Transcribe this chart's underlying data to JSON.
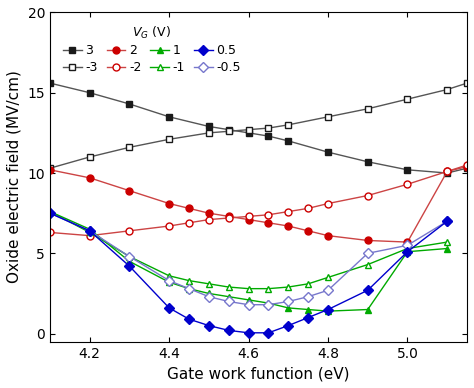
{
  "xlabel": "Gate work function (eV)",
  "ylabel": "Oxide electric field (MV/cm)",
  "xlim": [
    4.1,
    5.15
  ],
  "ylim": [
    -0.5,
    20
  ],
  "yticks": [
    0,
    5,
    10,
    15,
    20
  ],
  "xticks": [
    4.2,
    4.4,
    4.6,
    4.8,
    5.0
  ],
  "series": {
    "3": {
      "x": [
        4.1,
        4.2,
        4.3,
        4.4,
        4.5,
        4.55,
        4.6,
        4.65,
        4.7,
        4.8,
        4.9,
        5.0,
        5.1,
        5.15
      ],
      "y": [
        15.6,
        15.0,
        14.3,
        13.5,
        12.9,
        12.7,
        12.5,
        12.3,
        12.0,
        11.3,
        10.7,
        10.2,
        10.0,
        10.3
      ],
      "color": "#1a1a1a",
      "marker": "s",
      "filled": true
    },
    "-3": {
      "x": [
        4.1,
        4.2,
        4.3,
        4.4,
        4.5,
        4.55,
        4.6,
        4.65,
        4.7,
        4.8,
        4.9,
        5.0,
        5.1,
        5.15
      ],
      "y": [
        10.3,
        11.0,
        11.6,
        12.1,
        12.5,
        12.6,
        12.7,
        12.8,
        13.0,
        13.5,
        14.0,
        14.6,
        15.2,
        15.6
      ],
      "color": "#1a1a1a",
      "marker": "s",
      "filled": false
    },
    "2": {
      "x": [
        4.1,
        4.2,
        4.3,
        4.4,
        4.45,
        4.5,
        4.55,
        4.6,
        4.65,
        4.7,
        4.75,
        4.8,
        4.9,
        5.0,
        5.1,
        5.15
      ],
      "y": [
        10.2,
        9.7,
        8.9,
        8.1,
        7.8,
        7.5,
        7.3,
        7.1,
        6.9,
        6.7,
        6.4,
        6.1,
        5.8,
        5.7,
        10.1,
        10.4
      ],
      "color": "#cc0000",
      "marker": "o",
      "filled": true
    },
    "-2": {
      "x": [
        4.1,
        4.2,
        4.3,
        4.4,
        4.45,
        4.5,
        4.55,
        4.6,
        4.65,
        4.7,
        4.75,
        4.8,
        4.9,
        5.0,
        5.1,
        5.15
      ],
      "y": [
        6.3,
        6.1,
        6.4,
        6.7,
        6.9,
        7.1,
        7.2,
        7.3,
        7.4,
        7.6,
        7.8,
        8.1,
        8.6,
        9.3,
        10.1,
        10.5
      ],
      "color": "#cc0000",
      "marker": "o",
      "filled": false
    },
    "1": {
      "x": [
        4.1,
        4.2,
        4.3,
        4.4,
        4.45,
        4.5,
        4.55,
        4.6,
        4.65,
        4.7,
        4.75,
        4.8,
        4.9,
        5.0,
        5.1
      ],
      "y": [
        7.6,
        6.5,
        4.5,
        3.2,
        2.8,
        2.5,
        2.3,
        2.1,
        1.9,
        1.6,
        1.5,
        1.4,
        1.5,
        5.1,
        5.3
      ],
      "color": "#00aa00",
      "marker": "^",
      "filled": true
    },
    "-1": {
      "x": [
        4.1,
        4.2,
        4.3,
        4.4,
        4.45,
        4.5,
        4.55,
        4.6,
        4.65,
        4.7,
        4.75,
        4.8,
        4.9,
        5.0,
        5.1
      ],
      "y": [
        7.6,
        6.3,
        4.8,
        3.6,
        3.3,
        3.1,
        2.9,
        2.8,
        2.8,
        2.9,
        3.1,
        3.5,
        4.3,
        5.3,
        5.7
      ],
      "color": "#00aa00",
      "marker": "^",
      "filled": false
    },
    "0.5": {
      "x": [
        4.1,
        4.2,
        4.3,
        4.4,
        4.45,
        4.5,
        4.55,
        4.6,
        4.65,
        4.7,
        4.75,
        4.8,
        4.9,
        5.0,
        5.1
      ],
      "y": [
        7.5,
        6.4,
        4.2,
        1.6,
        0.9,
        0.5,
        0.2,
        0.05,
        0.05,
        0.5,
        1.0,
        1.5,
        2.7,
        5.1,
        7.0
      ],
      "color": "#0000cc",
      "marker": "D",
      "filled": true
    },
    "-0.5": {
      "x": [
        4.1,
        4.2,
        4.3,
        4.4,
        4.45,
        4.5,
        4.55,
        4.6,
        4.65,
        4.7,
        4.75,
        4.8,
        4.9,
        5.0,
        5.1
      ],
      "y": [
        7.5,
        6.4,
        4.8,
        3.3,
        2.8,
        2.3,
        2.0,
        1.8,
        1.8,
        2.0,
        2.3,
        2.7,
        5.0,
        5.5,
        7.0
      ],
      "color": "#7777cc",
      "marker": "D",
      "filled": false
    }
  },
  "marker_map": {
    "3": {
      "marker": "s",
      "filled": true,
      "color": "#1a1a1a",
      "lcolor": "#555555"
    },
    "-3": {
      "marker": "s",
      "filled": false,
      "color": "#1a1a1a",
      "lcolor": "#555555"
    },
    "2": {
      "marker": "o",
      "filled": true,
      "color": "#cc0000",
      "lcolor": "#cc4444"
    },
    "-2": {
      "marker": "o",
      "filled": false,
      "color": "#cc0000",
      "lcolor": "#cc4444"
    },
    "1": {
      "marker": "^",
      "filled": true,
      "color": "#00aa00",
      "lcolor": "#00aa00"
    },
    "-1": {
      "marker": "^",
      "filled": false,
      "color": "#00aa00",
      "lcolor": "#00aa00"
    },
    "0.5": {
      "marker": "D",
      "filled": true,
      "color": "#0000cc",
      "lcolor": "#0000cc"
    },
    "-0.5": {
      "marker": "D",
      "filled": false,
      "color": "#7777cc",
      "lcolor": "#7777cc"
    }
  },
  "plot_order": [
    "3",
    "-3",
    "2",
    "-2",
    "-1",
    "1",
    "-0.5",
    "0.5"
  ],
  "legend_row1": [
    "3",
    "-3",
    "2",
    "-2"
  ],
  "legend_row2": [
    "1",
    "-1",
    "0.5",
    "-0.5"
  ],
  "legend_title": "$V_G$ (V)"
}
